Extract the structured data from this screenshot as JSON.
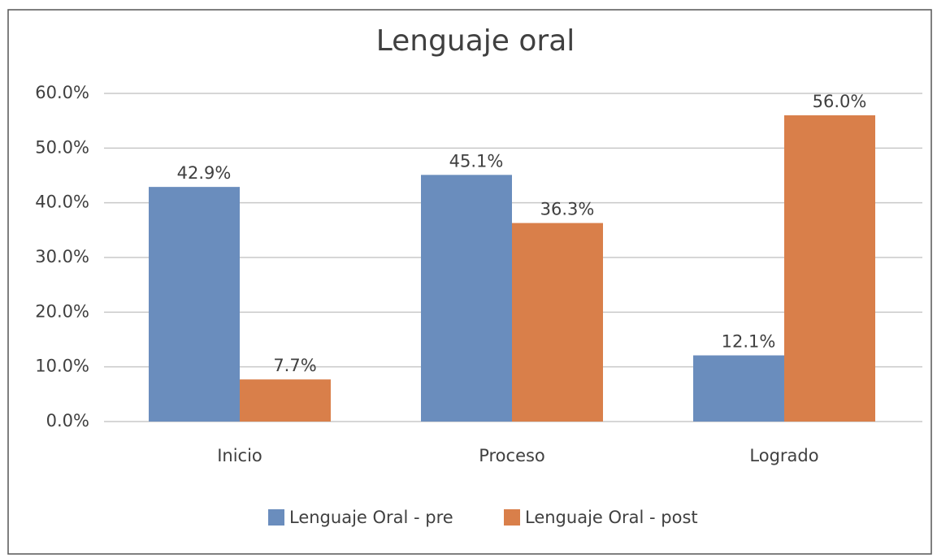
{
  "chart_data": {
    "type": "bar",
    "title": "Lenguaje oral",
    "categories": [
      "Inicio",
      "Proceso",
      "Logrado"
    ],
    "series": [
      {
        "name": "Lenguaje Oral - pre",
        "color": "#6a8dbd",
        "values": [
          42.9,
          45.1,
          12.1
        ],
        "value_labels": [
          "42.9%",
          "45.1%",
          "12.1%"
        ]
      },
      {
        "name": "Lenguaje Oral - post",
        "color": "#d97f4a",
        "values": [
          7.7,
          36.3,
          56.0
        ],
        "value_labels": [
          "7.7%",
          "36.3%",
          "56.0%"
        ]
      }
    ],
    "ylim": [
      0,
      60
    ],
    "yticks": [
      {
        "value": 0,
        "label": "0.0%"
      },
      {
        "value": 10,
        "label": "10.0%"
      },
      {
        "value": 20,
        "label": "20.0%"
      },
      {
        "value": 30,
        "label": "30.0%"
      },
      {
        "value": 40,
        "label": "40.0%"
      },
      {
        "value": 50,
        "label": "50.0%"
      },
      {
        "value": 60,
        "label": "60.0%"
      }
    ],
    "grid": true,
    "legend": "bottom"
  }
}
